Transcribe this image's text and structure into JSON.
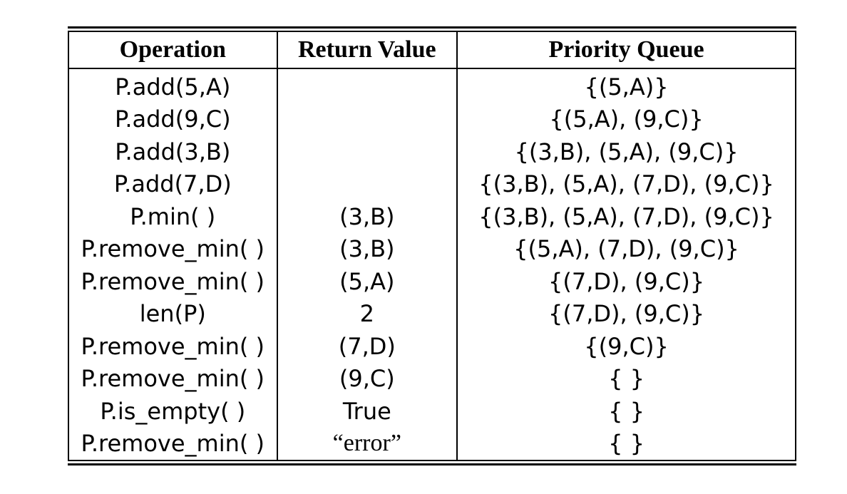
{
  "table": {
    "headers": [
      "Operation",
      "Return Value",
      "Priority Queue"
    ],
    "rows": [
      {
        "operation": "P.add(5,A)",
        "return_value": "",
        "priority_queue": "{(5,A)}"
      },
      {
        "operation": "P.add(9,C)",
        "return_value": "",
        "priority_queue": "{(5,A), (9,C)}"
      },
      {
        "operation": "P.add(3,B)",
        "return_value": "",
        "priority_queue": "{(3,B), (5,A), (9,C)}"
      },
      {
        "operation": "P.add(7,D)",
        "return_value": "",
        "priority_queue": "{(3,B), (5,A), (7,D), (9,C)}"
      },
      {
        "operation": "P.min( )",
        "return_value": "(3,B)",
        "priority_queue": "{(3,B), (5,A), (7,D), (9,C)}"
      },
      {
        "operation": "P.remove_min( )",
        "return_value": "(3,B)",
        "priority_queue": "{(5,A), (7,D), (9,C)}"
      },
      {
        "operation": "P.remove_min( )",
        "return_value": "(5,A)",
        "priority_queue": "{(7,D), (9,C)}"
      },
      {
        "operation": "len(P)",
        "return_value": "2",
        "priority_queue": "{(7,D), (9,C)}"
      },
      {
        "operation": "P.remove_min( )",
        "return_value": "(7,D)",
        "priority_queue": "{(9,C)}"
      },
      {
        "operation": "P.remove_min( )",
        "return_value": "(9,C)",
        "priority_queue": "{ }"
      },
      {
        "operation": "P.is_empty( )",
        "return_value": "True",
        "priority_queue": "{ }"
      },
      {
        "operation": "P.remove_min( )",
        "return_value": "“error”",
        "priority_queue": "{ }"
      }
    ]
  }
}
